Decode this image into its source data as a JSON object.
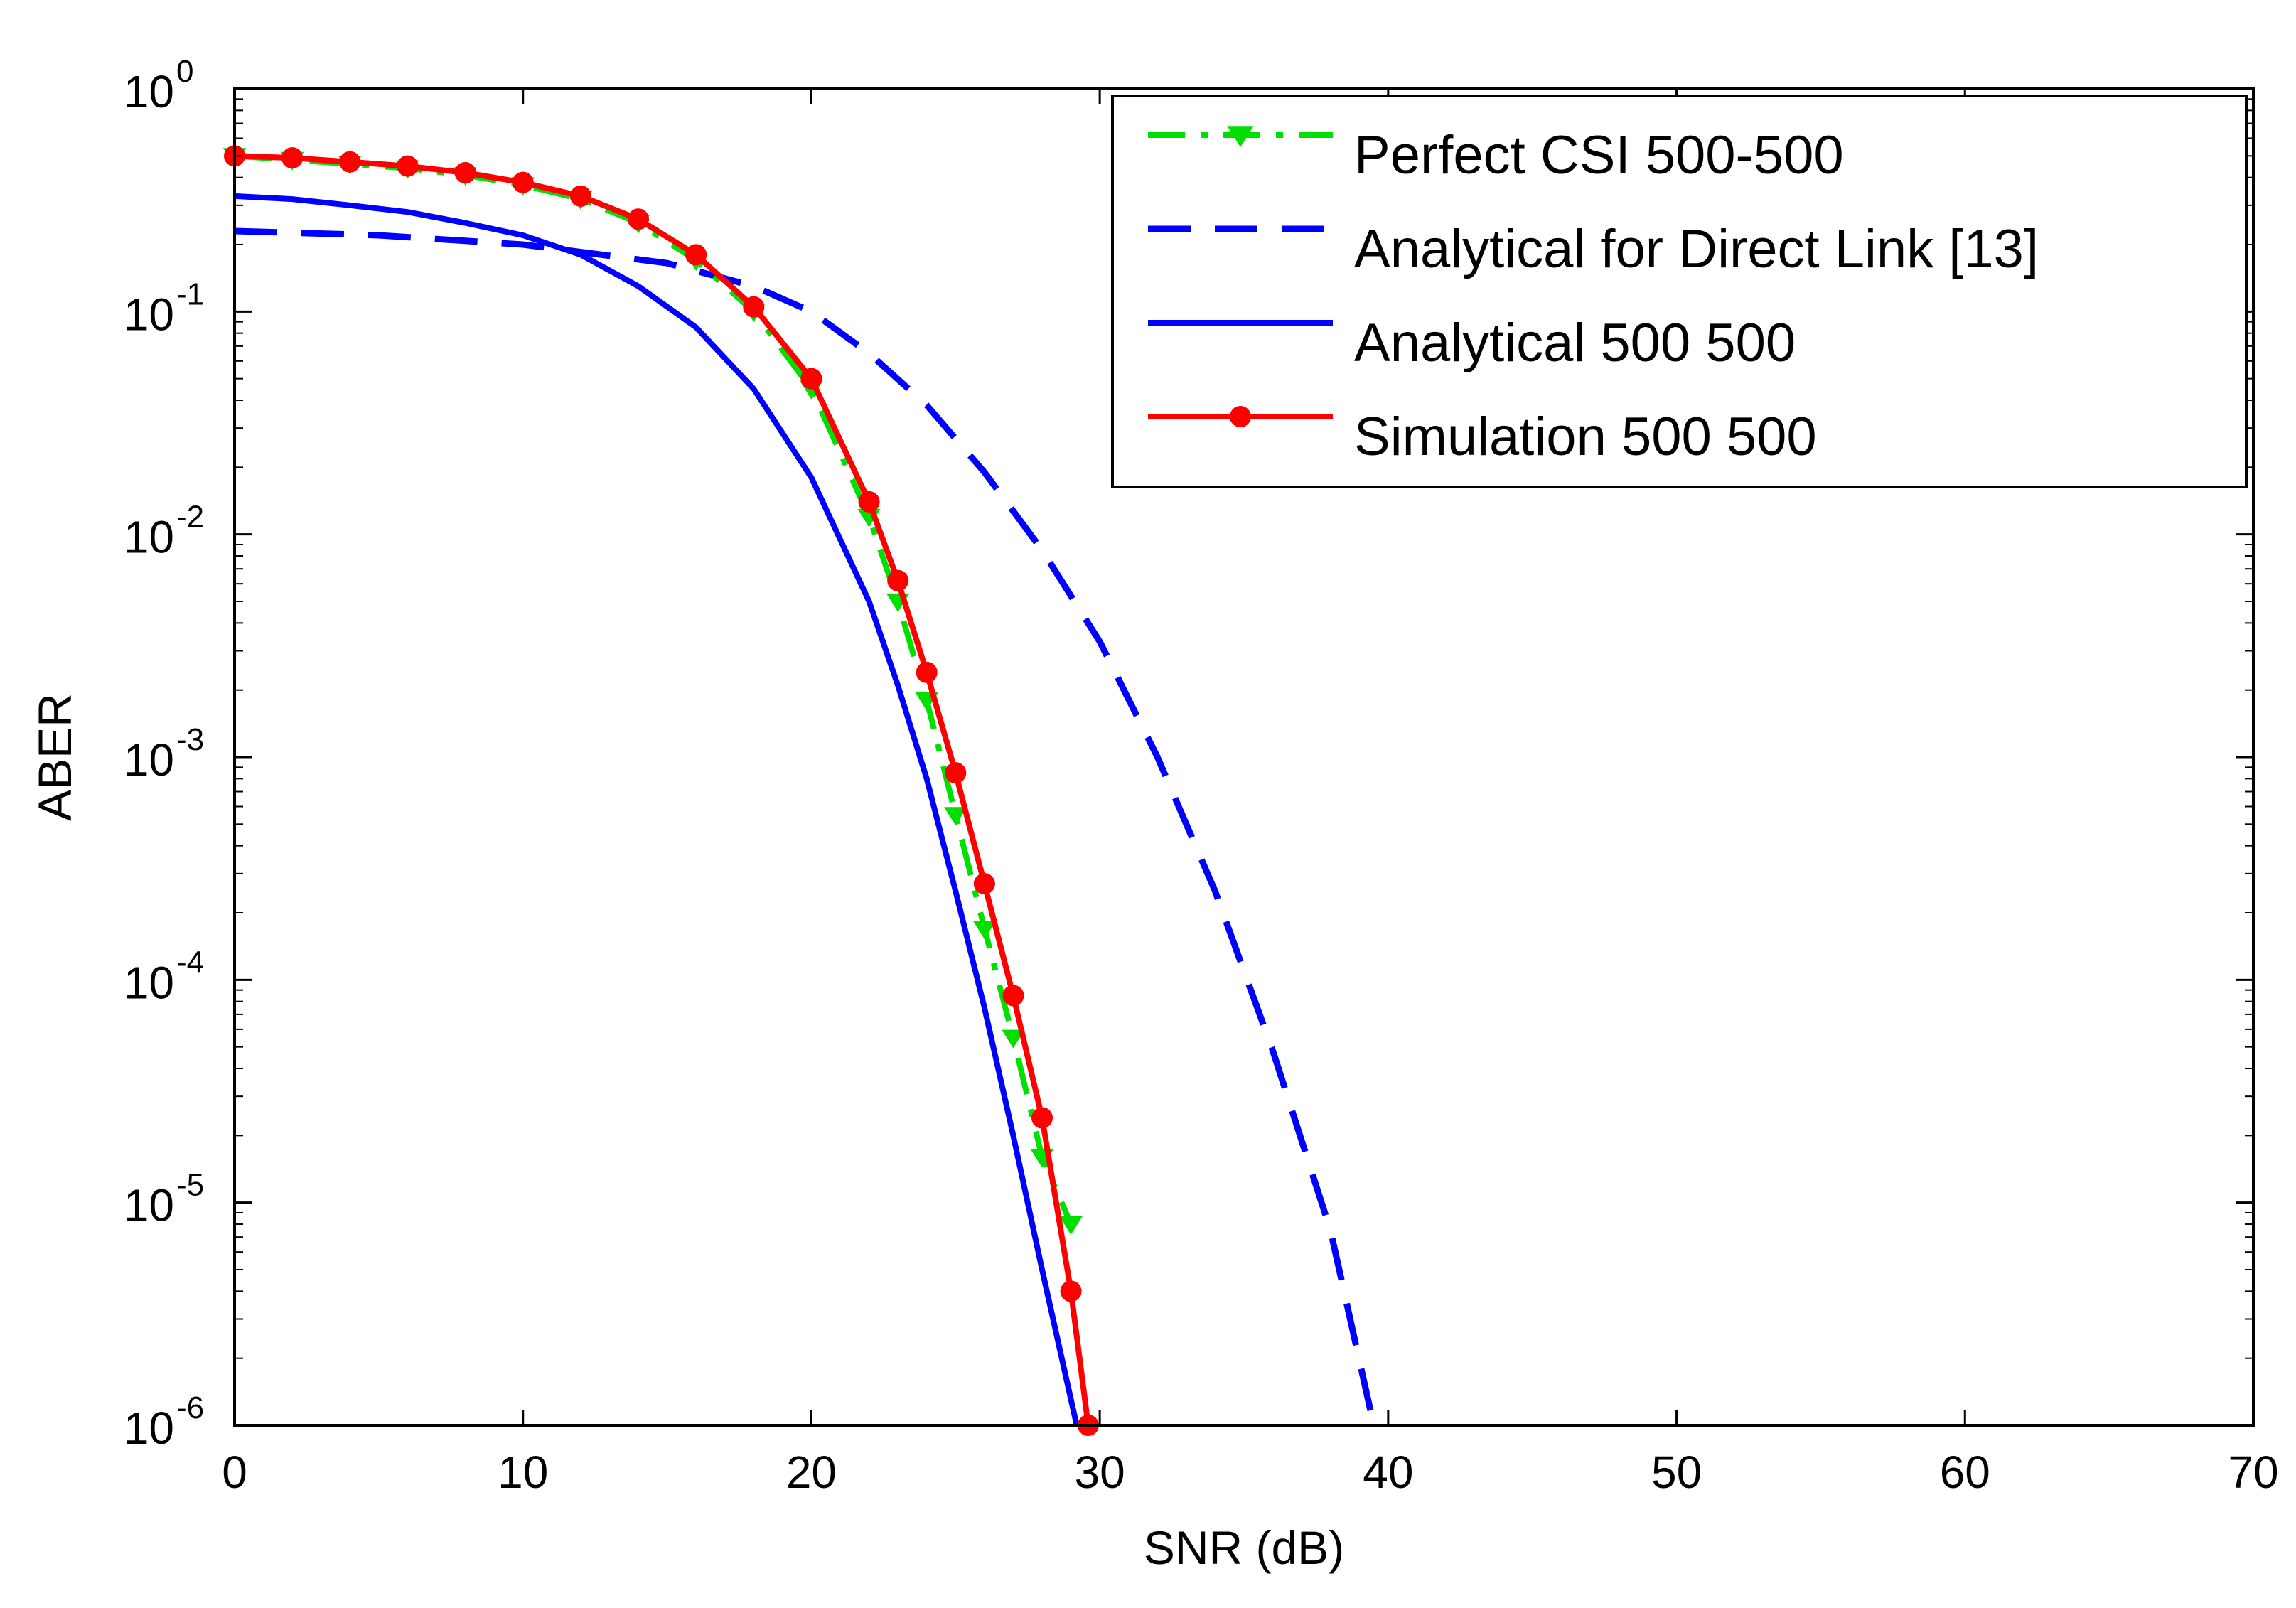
{
  "chart_data": {
    "type": "line",
    "title": "",
    "xlabel": "SNR (dB)",
    "ylabel": "ABER",
    "xlim": [
      0,
      70
    ],
    "ylim": [
      1e-06,
      1
    ],
    "yscale": "log",
    "x_ticks": [
      "0",
      "10",
      "20",
      "30",
      "40",
      "50",
      "60",
      "70"
    ],
    "y_ticks": [
      {
        "base": "10",
        "exp": "0"
      },
      {
        "base": "10",
        "exp": "-1"
      },
      {
        "base": "10",
        "exp": "-2"
      },
      {
        "base": "10",
        "exp": "-3"
      },
      {
        "base": "10",
        "exp": "-4"
      },
      {
        "base": "10",
        "exp": "-5"
      },
      {
        "base": "10",
        "exp": "-6"
      }
    ],
    "legend_position": "top-right",
    "series": [
      {
        "name": "Perfect CSI 500-500",
        "color": "#00e000",
        "style": "dashdot",
        "marker": "triangle",
        "x": [
          0,
          2,
          4,
          6,
          8,
          10,
          12,
          14,
          16,
          18,
          20,
          22,
          23,
          24,
          25,
          26,
          27,
          28,
          29
        ],
        "y": [
          0.5,
          0.48,
          0.46,
          0.44,
          0.41,
          0.37,
          0.32,
          0.25,
          0.17,
          0.1,
          0.045,
          0.012,
          0.005,
          0.0018,
          0.00055,
          0.00017,
          5.5e-05,
          1.6e-05,
          8e-06
        ]
      },
      {
        "name": "Analytical for Direct Link [13]",
        "color": "#0000ff",
        "style": "dashed",
        "marker": "none",
        "x": [
          0,
          5,
          10,
          15,
          18,
          20,
          22,
          24,
          26,
          28,
          30,
          32,
          34,
          36,
          38,
          39.5
        ],
        "y": [
          0.23,
          0.22,
          0.2,
          0.165,
          0.13,
          0.1,
          0.065,
          0.038,
          0.019,
          0.0085,
          0.0033,
          0.001,
          0.00025,
          4.8e-05,
          7.5e-06,
          1e-06
        ]
      },
      {
        "name": "Analytical 500 500",
        "color": "#0000ff",
        "style": "solid",
        "marker": "none",
        "x": [
          0,
          2,
          4,
          6,
          8,
          10,
          12,
          14,
          16,
          18,
          20,
          22,
          23,
          24,
          25,
          26,
          27,
          28,
          29.2
        ],
        "y": [
          0.33,
          0.32,
          0.3,
          0.28,
          0.25,
          0.22,
          0.18,
          0.13,
          0.085,
          0.045,
          0.018,
          0.005,
          0.0021,
          0.0008,
          0.00025,
          7.5e-05,
          2e-05,
          5e-06,
          1e-06
        ]
      },
      {
        "name": "Simulation 500 500",
        "color": "#ff0000",
        "style": "solid",
        "marker": "circle",
        "x": [
          0,
          2,
          4,
          6,
          8,
          10,
          12,
          14,
          16,
          18,
          20,
          22,
          23,
          24,
          25,
          26,
          27,
          28,
          29,
          29.6
        ],
        "y": [
          0.5,
          0.49,
          0.47,
          0.45,
          0.42,
          0.38,
          0.33,
          0.26,
          0.18,
          0.105,
          0.05,
          0.014,
          0.0062,
          0.0024,
          0.00085,
          0.00027,
          8.5e-05,
          2.4e-05,
          4e-06,
          1e-06
        ]
      }
    ]
  }
}
